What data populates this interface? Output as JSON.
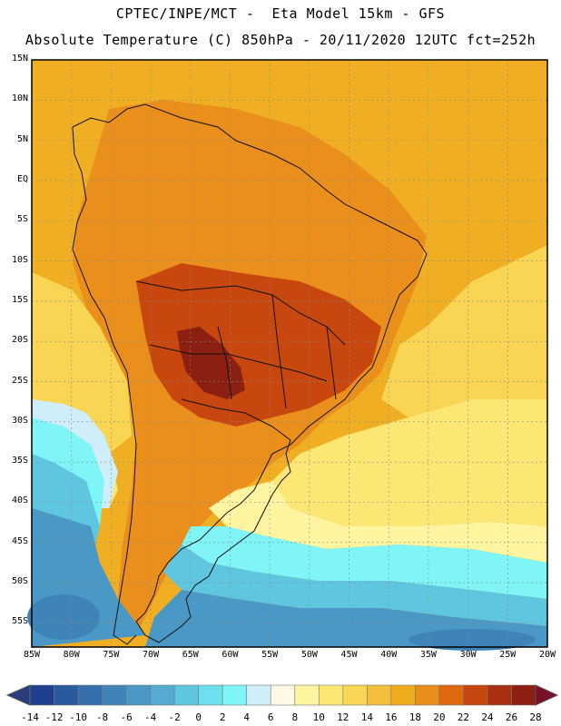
{
  "header": {
    "line1": "CPTEC/INPE/MCT -  Eta Model 15km - GFS",
    "line2": "Absolute Temperature (C) 850hPa - 20/11/2020 12UTC fct=252h"
  },
  "map": {
    "lat_labels": [
      "15N",
      "10N",
      "5N",
      "EQ",
      "5S",
      "10S",
      "15S",
      "20S",
      "25S",
      "30S",
      "35S",
      "40S",
      "45S",
      "50S",
      "55S"
    ],
    "lon_labels": [
      "85W",
      "80W",
      "75W",
      "70W",
      "65W",
      "60W",
      "55W",
      "50W",
      "45W",
      "40W",
      "35W",
      "30W",
      "25W",
      "20W"
    ],
    "lat_range": [
      15,
      -58
    ],
    "lon_range": [
      -85,
      -20
    ]
  },
  "colorbar": {
    "labels": [
      "-14",
      "-12",
      "-10",
      "-8",
      "-6",
      "-4",
      "-2",
      "0",
      "2",
      "4",
      "6",
      "8",
      "10",
      "12",
      "14",
      "16",
      "18",
      "20",
      "22",
      "24",
      "26",
      "28"
    ],
    "colors": [
      "#1f3f8f",
      "#2a5a9e",
      "#3570ad",
      "#3f84b9",
      "#4a98c6",
      "#55aad2",
      "#5fc6e0",
      "#6be0ee",
      "#7ff5f8",
      "#cfeefa",
      "#fff9e6",
      "#fff4a0",
      "#fce774",
      "#f8d552",
      "#f3bf3a",
      "#efad1d",
      "#e98e1a",
      "#de6910",
      "#c8470e",
      "#a9300e",
      "#8a1f12"
    ],
    "low_color": "#2a3c7c",
    "high_color": "#7a0f2a"
  },
  "zones": {
    "ocean_north": "#f0ae22",
    "tropics_land": "#ea8e1c",
    "hot_core": "#c8470e",
    "extreme": "#8a1f12",
    "warm_band": "#f8d552",
    "mild_band": "#fce774",
    "transition": "#fff4a0",
    "cool_band": "#cfeefa",
    "cold_band": "#7ff5f8",
    "colder_band": "#5fc6e0",
    "cold_ocean": "#4a98c6",
    "deep_cold": "#3f84b9"
  }
}
